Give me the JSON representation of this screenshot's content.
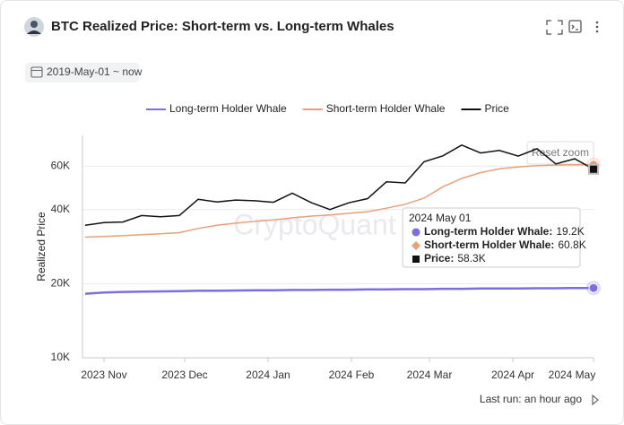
{
  "title": "BTC Realized Price: Short-term vs. Long-term Whales",
  "date_range": "2019-May-01 ~ now",
  "footer": "Last run: an hour ago",
  "chart_data": {
    "type": "line",
    "ylabel": "Realized Price",
    "log_scale": true,
    "grid": true,
    "watermark": "CryptoQuant",
    "reset_zoom": "Reset zoom",
    "x": [
      "2023-10-25",
      "2023-11-01",
      "2023-11-08",
      "2023-11-15",
      "2023-11-22",
      "2023-11-29",
      "2023-12-06",
      "2023-12-13",
      "2023-12-20",
      "2023-12-27",
      "2024-01-03",
      "2024-01-10",
      "2024-01-17",
      "2024-01-24",
      "2024-01-31",
      "2024-02-07",
      "2024-02-14",
      "2024-02-21",
      "2024-02-28",
      "2024-03-06",
      "2024-03-13",
      "2024-03-20",
      "2024-03-27",
      "2024-04-03",
      "2024-04-10",
      "2024-04-17",
      "2024-04-24",
      "2024-05-01"
    ],
    "xlim": [
      "2023-10-24",
      "2024-05-01"
    ],
    "xticks": [
      {
        "value": "2023-11-01",
        "label": "2023 Nov"
      },
      {
        "value": "2023-12-01",
        "label": "2023 Dec"
      },
      {
        "value": "2024-01-01",
        "label": "2024 Jan"
      },
      {
        "value": "2024-02-01",
        "label": "2024 Feb"
      },
      {
        "value": "2024-03-01",
        "label": "2024 Mar"
      },
      {
        "value": "2024-04-01",
        "label": "2024 Apr"
      },
      {
        "value": "2024-05-01",
        "label": "2024 May"
      }
    ],
    "ylim": [
      10000,
      80000
    ],
    "yticks": [
      {
        "value": 10000,
        "label": "10K"
      },
      {
        "value": 20000,
        "label": "20K"
      },
      {
        "value": 40000,
        "label": "40K"
      },
      {
        "value": 60000,
        "label": "60K"
      }
    ],
    "series": [
      {
        "name": "Long-term Holder Whale",
        "color": "#7b6fe0",
        "marker": "circle",
        "values": [
          18200,
          18400,
          18500,
          18550,
          18600,
          18650,
          18700,
          18700,
          18750,
          18800,
          18800,
          18850,
          18850,
          18900,
          18900,
          18950,
          18950,
          19000,
          19000,
          19050,
          19050,
          19100,
          19100,
          19100,
          19150,
          19150,
          19200,
          19200
        ]
      },
      {
        "name": "Short-term Holder Whale",
        "color": "#e8a07a",
        "marker": "diamond",
        "values": [
          30900,
          31100,
          31300,
          31600,
          31900,
          32200,
          33500,
          34500,
          35200,
          35800,
          36300,
          37000,
          37600,
          38000,
          38600,
          39200,
          40500,
          42000,
          44500,
          49500,
          53500,
          56500,
          58500,
          59600,
          60300,
          60600,
          60800,
          60800
        ]
      },
      {
        "name": "Price",
        "color": "#111111",
        "marker": "square",
        "values": [
          34500,
          35400,
          35600,
          37800,
          37400,
          37800,
          44000,
          42900,
          43700,
          43400,
          42800,
          46600,
          42700,
          40000,
          42600,
          44300,
          51800,
          51300,
          62500,
          66100,
          73100,
          67900,
          69500,
          65900,
          70600,
          61300,
          64300,
          58300
        ]
      }
    ],
    "tooltip": {
      "date": "2024 May 01",
      "items": [
        {
          "label": "Long-term Holder Whale:",
          "value": "19.2K"
        },
        {
          "label": "Short-term Holder Whale:",
          "value": "60.8K"
        },
        {
          "label": "Price:",
          "value": "58.3K"
        }
      ]
    }
  }
}
